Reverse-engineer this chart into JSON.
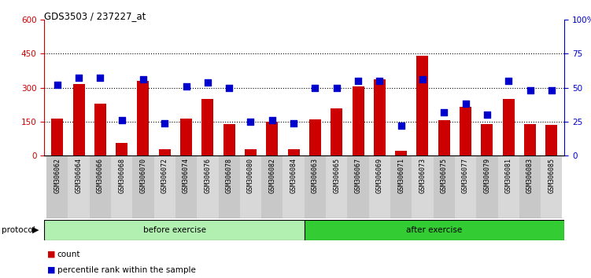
{
  "title": "GDS3503 / 237227_at",
  "categories": [
    "GSM306062",
    "GSM306064",
    "GSM306066",
    "GSM306068",
    "GSM306070",
    "GSM306072",
    "GSM306074",
    "GSM306076",
    "GSM306078",
    "GSM306080",
    "GSM306082",
    "GSM306084",
    "GSM306063",
    "GSM306065",
    "GSM306067",
    "GSM306069",
    "GSM306071",
    "GSM306073",
    "GSM306075",
    "GSM306077",
    "GSM306079",
    "GSM306081",
    "GSM306083",
    "GSM306085"
  ],
  "bar_values": [
    165,
    315,
    230,
    55,
    330,
    30,
    165,
    250,
    140,
    30,
    150,
    30,
    160,
    210,
    305,
    335,
    20,
    440,
    155,
    215,
    140,
    250,
    140,
    135
  ],
  "percentile_values": [
    52,
    57,
    57,
    26,
    56,
    24,
    51,
    54,
    50,
    25,
    26,
    24,
    50,
    50,
    55,
    55,
    22,
    56,
    32,
    38,
    30,
    55,
    48,
    48
  ],
  "bar_color": "#cc0000",
  "dot_color": "#0000cc",
  "before_count": 12,
  "after_count": 12,
  "before_label": "before exercise",
  "after_label": "after exercise",
  "protocol_label": "protocol",
  "legend_count_label": "count",
  "legend_pct_label": "percentile rank within the sample",
  "ylim_left": [
    0,
    600
  ],
  "ylim_right": [
    0,
    100
  ],
  "yticks_left": [
    0,
    150,
    300,
    450,
    600
  ],
  "yticks_right": [
    0,
    25,
    50,
    75,
    100
  ],
  "grid_yticks": [
    150,
    300,
    450
  ],
  "before_color": "#b2f0b2",
  "after_color": "#33cc33"
}
